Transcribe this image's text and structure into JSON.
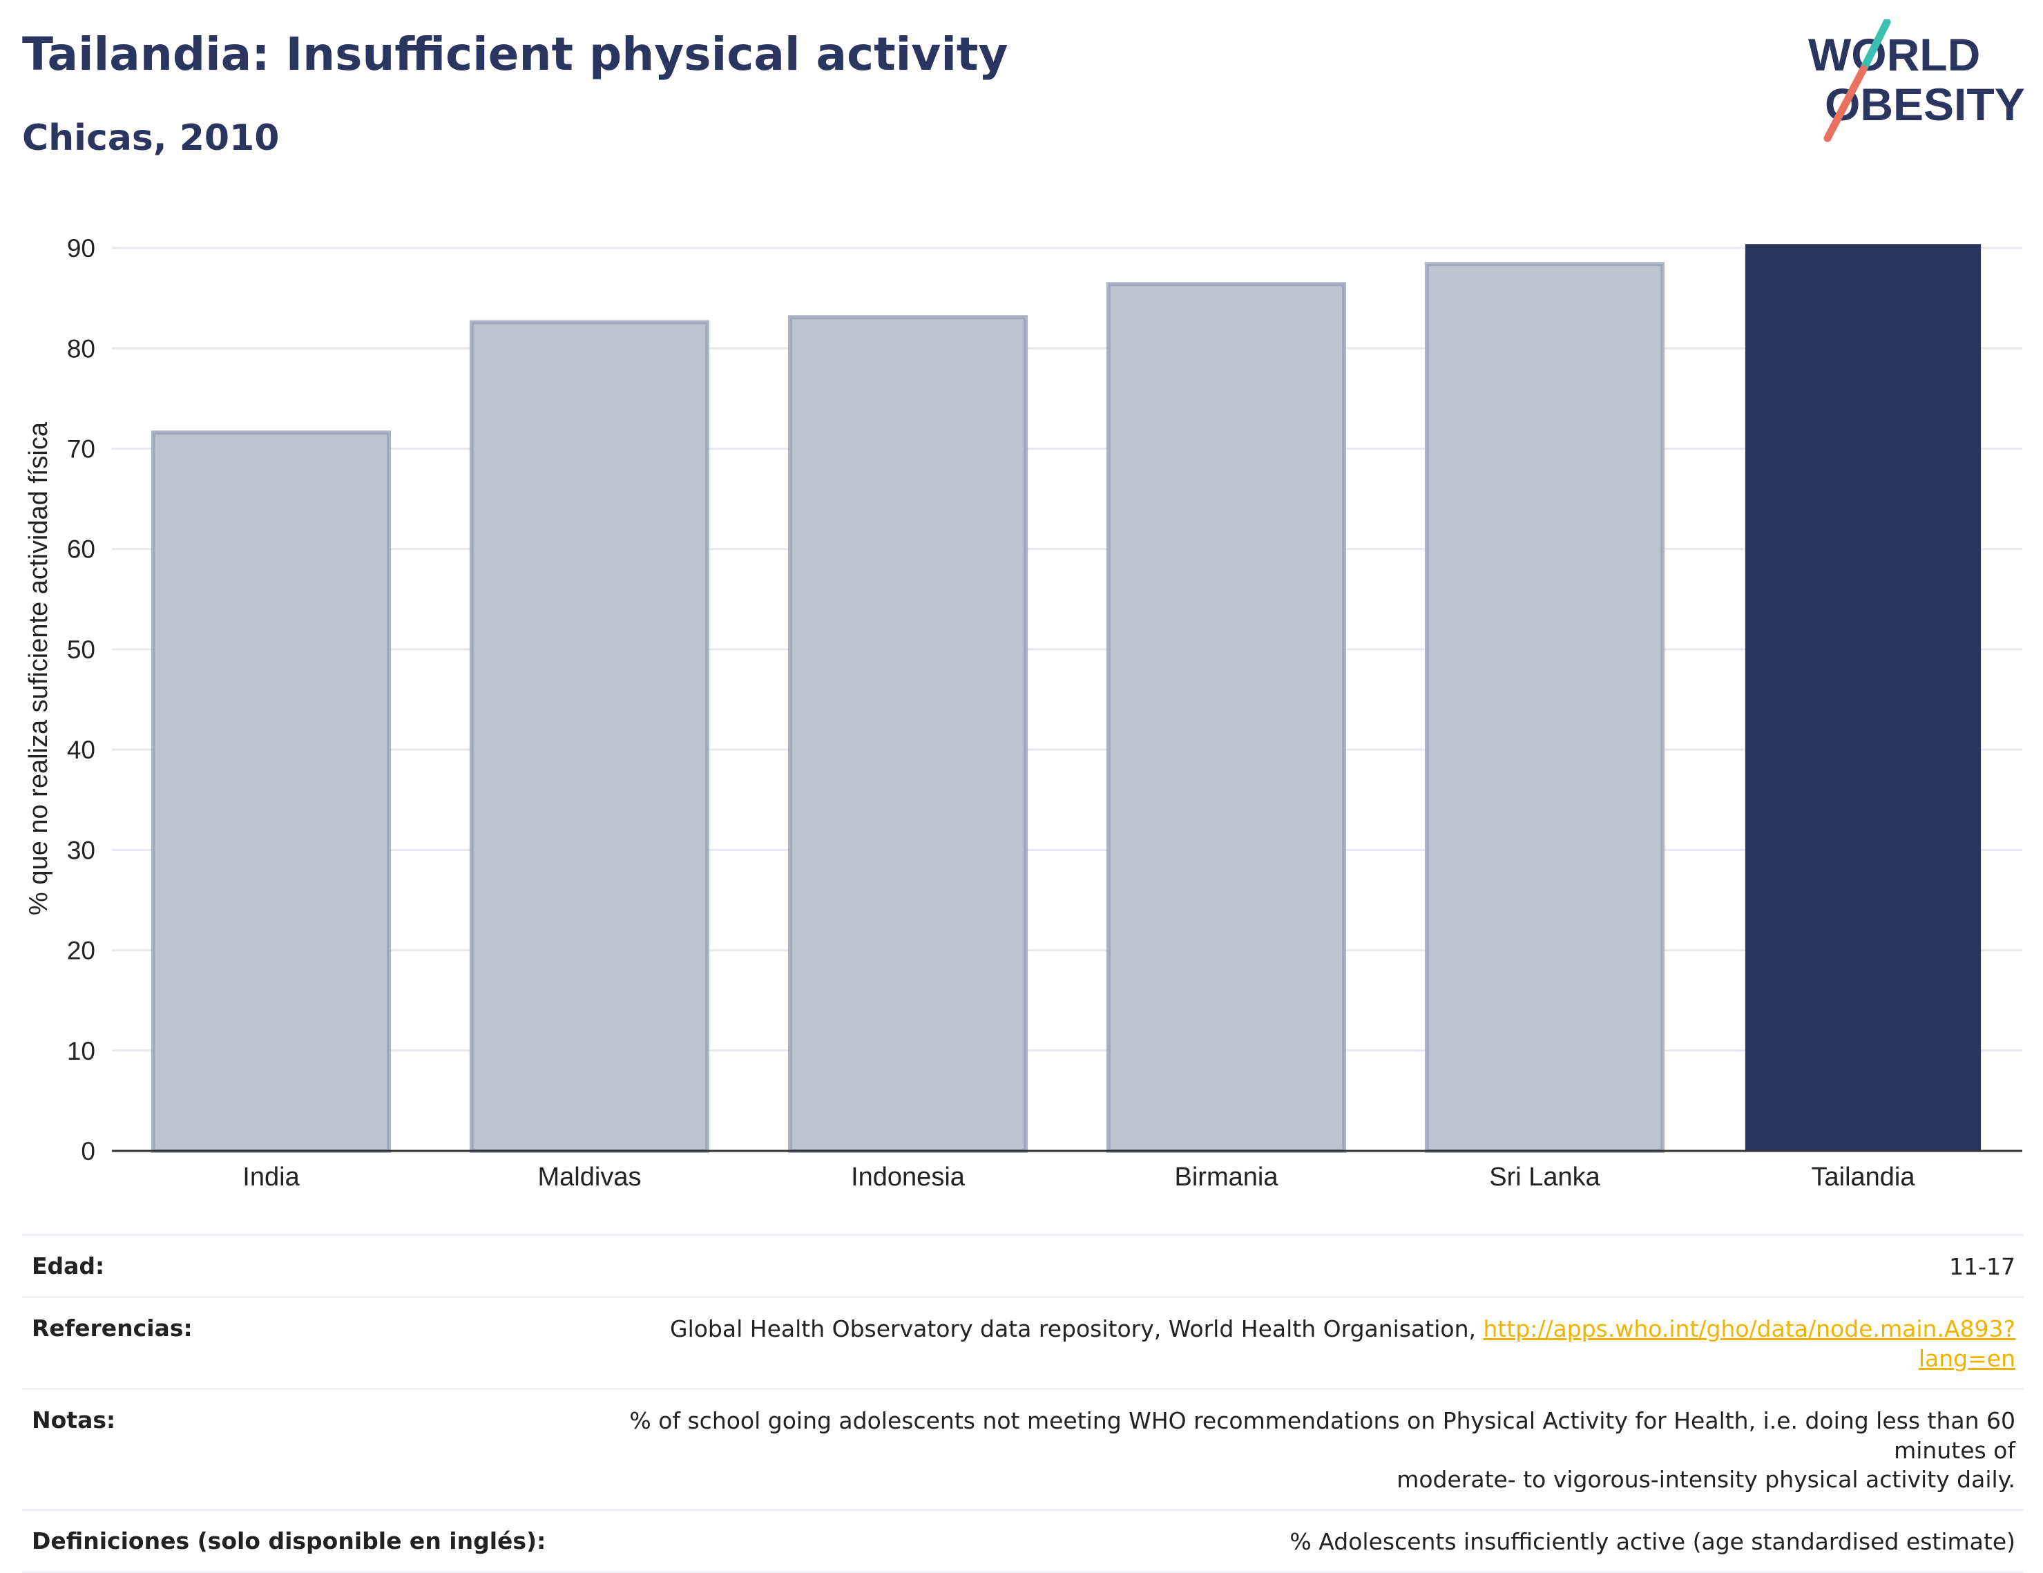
{
  "header": {
    "title": "Tailandia: Insufficient physical activity",
    "subtitle": "Chicas, 2010",
    "logo_line1": "WORLD",
    "logo_line2": "OBESITY"
  },
  "chart_data": {
    "type": "bar",
    "categories": [
      "India",
      "Maldivas",
      "Indonesia",
      "Birmania",
      "Sri Lanka",
      "Tailandia"
    ],
    "values": [
      71.6,
      82.6,
      83.1,
      86.4,
      88.4,
      90.4
    ],
    "highlight": "Tailandia",
    "ylabel": "% que no realiza suficiente actividad física",
    "xlabel": "",
    "ylim": [
      0,
      92
    ],
    "yticks": [
      0,
      10,
      20,
      30,
      40,
      50,
      60,
      70,
      80,
      90
    ],
    "grid": true,
    "colors": {
      "bar": "#bfc3cf",
      "bar_stroke": "#9aa1b8",
      "highlight": "#2a3560",
      "grid": "#e6e8ee",
      "axis": "#333333",
      "text": "#222222"
    }
  },
  "meta": {
    "edad_label": "Edad:",
    "edad_value": "11-17",
    "referencias_label": "Referencias:",
    "referencias_text": "Global Health Observatory data repository, World Health Organisation, ",
    "referencias_link": "http://apps.who.int/gho/data/node.main.A893?lang=en",
    "notas_label": "Notas:",
    "notas_value_line1": "% of school going adolescents not meeting WHO recommendations on Physical Activity for Health, i.e. doing less than 60 minutes of",
    "notas_value_line2": "moderate- to vigorous-intensity physical activity daily.",
    "definiciones_label": "Definiciones (solo disponible en inglés):",
    "definiciones_value": "% Adolescents insufficiently active (age standardised estimate)"
  },
  "brand_colors": {
    "navy": "#2a3560",
    "teal": "#3bbfb0",
    "coral": "#e8715f",
    "link": "#f0b400"
  }
}
